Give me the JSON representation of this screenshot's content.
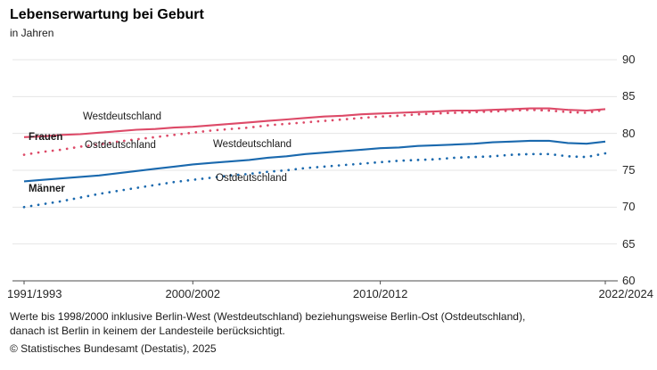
{
  "header": {
    "title": "Lebenserwartung bei Geburt",
    "subtitle": "in Jahren"
  },
  "annotations": {
    "frauen": "Frauen",
    "maenner": "Männer",
    "westdeutschland": "Westdeutschland",
    "ostdeutschland": "Ostdeutschland"
  },
  "footnote": {
    "line1": "Werte bis 1998/2000 inklusive Berlin-West (Westdeutschland) beziehungsweise Berlin-Ost (Ostdeutschland),",
    "line2": "danach ist Berlin in keinem der Landesteile berücksichtigt."
  },
  "footer": {
    "copyright": "© Statistisches Bundesamt (Destatis), 2025"
  },
  "colors": {
    "frauen": "#dd4a68",
    "maenner": "#1a69ae",
    "gridline": "#e4e4e4",
    "axis": "#4d4d4d"
  },
  "chart_data": {
    "type": "line",
    "title": "Lebenserwartung bei Geburt",
    "ylabel": "Jahre",
    "ylim": [
      60,
      90
    ],
    "y_ticks": [
      60,
      65,
      70,
      75,
      80,
      85,
      90
    ],
    "grid": true,
    "legend_position": "inline-labels",
    "x_start_year": 1991,
    "x_end_year": 2022,
    "x_ticks": [
      {
        "year": 1991,
        "label": "1991/1993"
      },
      {
        "year": 2000,
        "label": "2000/2002"
      },
      {
        "year": 2010,
        "label": "2010/2012"
      },
      {
        "year": 2022,
        "label": "2022/2024"
      }
    ],
    "series": [
      {
        "name": "Frauen Westdeutschland",
        "group": "Frauen",
        "region": "Westdeutschland",
        "style": "solid",
        "color": "#dd4a68",
        "values": [
          79.5,
          79.6,
          79.8,
          79.9,
          80.1,
          80.3,
          80.5,
          80.6,
          80.8,
          80.9,
          81.1,
          81.3,
          81.5,
          81.7,
          81.9,
          82.1,
          82.3,
          82.4,
          82.6,
          82.7,
          82.8,
          82.9,
          83.0,
          83.1,
          83.1,
          83.2,
          83.3,
          83.4,
          83.4,
          83.2,
          83.1,
          83.3
        ]
      },
      {
        "name": "Frauen Ostdeutschland",
        "group": "Frauen",
        "region": "Ostdeutschland",
        "style": "dotted",
        "color": "#dd4a68",
        "values": [
          77.1,
          77.5,
          77.8,
          78.2,
          78.5,
          78.9,
          79.2,
          79.5,
          79.8,
          80.1,
          80.4,
          80.6,
          80.8,
          81.1,
          81.3,
          81.5,
          81.7,
          81.9,
          82.1,
          82.3,
          82.4,
          82.6,
          82.7,
          82.8,
          82.9,
          83.0,
          83.1,
          83.2,
          83.1,
          82.9,
          82.8,
          83.2
        ]
      },
      {
        "name": "Männer Westdeutschland",
        "group": "Männer",
        "region": "Westdeutschland",
        "style": "solid",
        "color": "#1a69ae",
        "values": [
          73.5,
          73.7,
          73.9,
          74.1,
          74.3,
          74.6,
          74.9,
          75.2,
          75.5,
          75.8,
          76.0,
          76.2,
          76.4,
          76.7,
          76.9,
          77.2,
          77.4,
          77.6,
          77.8,
          78.0,
          78.1,
          78.3,
          78.4,
          78.5,
          78.6,
          78.8,
          78.9,
          79.0,
          79.0,
          78.7,
          78.6,
          78.9
        ]
      },
      {
        "name": "Männer Ostdeutschland",
        "group": "Männer",
        "region": "Ostdeutschland",
        "style": "dotted",
        "color": "#1a69ae",
        "values": [
          70.0,
          70.4,
          70.8,
          71.3,
          71.8,
          72.2,
          72.6,
          73.0,
          73.4,
          73.7,
          74.0,
          74.3,
          74.5,
          74.8,
          75.0,
          75.3,
          75.5,
          75.7,
          75.9,
          76.1,
          76.3,
          76.4,
          76.5,
          76.7,
          76.8,
          76.9,
          77.1,
          77.2,
          77.2,
          76.9,
          76.8,
          77.3
        ]
      }
    ]
  }
}
